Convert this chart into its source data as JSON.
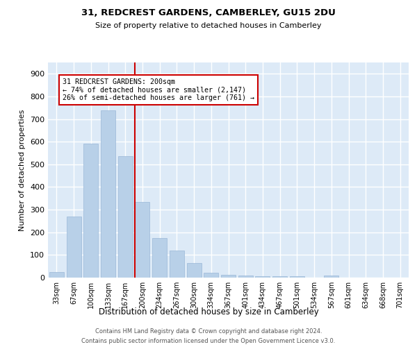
{
  "title": "31, REDCREST GARDENS, CAMBERLEY, GU15 2DU",
  "subtitle": "Size of property relative to detached houses in Camberley",
  "xlabel": "Distribution of detached houses by size in Camberley",
  "ylabel": "Number of detached properties",
  "categories": [
    "33sqm",
    "67sqm",
    "100sqm",
    "133sqm",
    "167sqm",
    "200sqm",
    "234sqm",
    "267sqm",
    "300sqm",
    "334sqm",
    "367sqm",
    "401sqm",
    "434sqm",
    "467sqm",
    "501sqm",
    "534sqm",
    "567sqm",
    "601sqm",
    "634sqm",
    "668sqm",
    "701sqm"
  ],
  "values": [
    25,
    270,
    590,
    740,
    535,
    335,
    175,
    120,
    65,
    22,
    13,
    10,
    7,
    5,
    5,
    0,
    8,
    0,
    0,
    0,
    0
  ],
  "bar_color": "#b8d0e8",
  "bar_edge_color": "#9ab8d8",
  "plot_bg_color": "#ddeaf7",
  "grid_color": "#ffffff",
  "highlight_line_color": "#cc0000",
  "highlight_bar_index": 5,
  "annotation_line1": "31 REDCREST GARDENS: 200sqm",
  "annotation_line2": "← 74% of detached houses are smaller (2,147)",
  "annotation_line3": "26% of semi-detached houses are larger (761) →",
  "annotation_box_edgecolor": "#cc0000",
  "ylim": [
    0,
    950
  ],
  "yticks": [
    0,
    100,
    200,
    300,
    400,
    500,
    600,
    700,
    800,
    900
  ],
  "footer_line1": "Contains HM Land Registry data © Crown copyright and database right 2024.",
  "footer_line2": "Contains public sector information licensed under the Open Government Licence v3.0."
}
